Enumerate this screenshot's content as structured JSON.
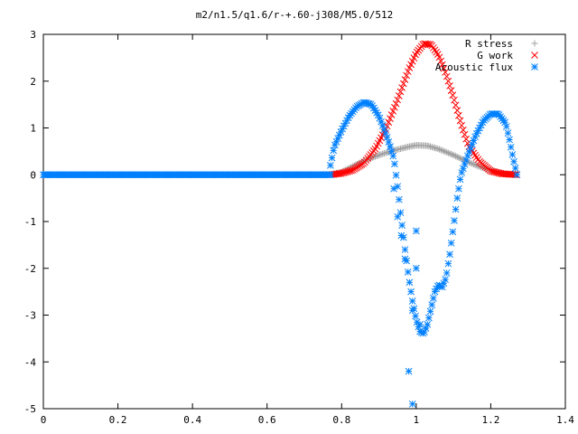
{
  "chart_data": {
    "type": "scatter",
    "title": "m2/n1.5/q1.6/r-+.60-j308/M5.0/512",
    "xlabel": "",
    "ylabel": "",
    "xlim": [
      0,
      1.4
    ],
    "ylim": [
      -5,
      3
    ],
    "xticks": [
      "0",
      "0.2",
      "0.4",
      "0.6",
      "0.8",
      "1",
      "1.2",
      "1.4"
    ],
    "yticks": [
      "3",
      "2",
      "1",
      "0",
      "-1",
      "-2",
      "-3",
      "-4",
      "-5"
    ],
    "grid": false,
    "legend": "top-right",
    "series": [
      {
        "name": "R stress",
        "marker": "plus",
        "color": "#a0a0a0",
        "x": [
          0.77,
          0.8,
          0.83,
          0.86,
          0.9,
          0.94,
          0.98,
          1.0,
          1.03,
          1.06,
          1.1,
          1.14,
          1.18,
          1.22,
          1.25,
          1.27
        ],
        "y": [
          0.0,
          0.06,
          0.18,
          0.3,
          0.42,
          0.52,
          0.6,
          0.63,
          0.62,
          0.55,
          0.42,
          0.27,
          0.14,
          0.05,
          0.01,
          0.0
        ]
      },
      {
        "name": "G work",
        "marker": "cross",
        "color": "#ff0000",
        "x": [
          0.77,
          0.8,
          0.83,
          0.86,
          0.89,
          0.92,
          0.95,
          0.98,
          1.0,
          1.02,
          1.04,
          1.06,
          1.08,
          1.1,
          1.12,
          1.14,
          1.17,
          1.2,
          1.23,
          1.27
        ],
        "y": [
          0.0,
          0.03,
          0.1,
          0.25,
          0.55,
          1.0,
          1.6,
          2.25,
          2.6,
          2.8,
          2.78,
          2.55,
          2.15,
          1.65,
          1.1,
          0.62,
          0.28,
          0.08,
          0.02,
          0.0
        ]
      },
      {
        "name": "Acoustic flux",
        "marker": "star",
        "color": "#0080ff",
        "x": [
          0.77,
          0.78,
          0.8,
          0.82,
          0.84,
          0.86,
          0.88,
          0.9,
          0.92,
          0.94,
          0.95,
          0.96,
          0.97,
          0.98,
          0.99,
          1.0,
          1.01,
          1.02,
          1.03,
          1.04,
          1.05,
          1.06,
          1.07,
          1.08,
          1.09,
          1.1,
          1.11,
          1.12,
          1.14,
          1.16,
          1.18,
          1.2,
          1.22,
          1.24,
          1.25,
          1.26,
          1.27,
          0.93,
          0.94,
          0.95,
          0.96,
          0.97,
          0.98,
          0.99,
          0.99,
          1.0,
          1.0,
          1.01
        ],
        "y": [
          0.2,
          0.6,
          0.95,
          1.25,
          1.45,
          1.55,
          1.5,
          1.25,
          0.85,
          0.35,
          -0.25,
          -0.95,
          -1.6,
          -2.2,
          -2.7,
          -3.1,
          -3.35,
          -3.4,
          -3.2,
          -2.85,
          -2.5,
          -2.35,
          -2.4,
          -2.2,
          -1.7,
          -1.1,
          -0.5,
          0.0,
          0.45,
          0.85,
          1.15,
          1.3,
          1.3,
          1.1,
          0.75,
          0.35,
          0.0,
          0.6,
          -0.3,
          -0.9,
          -1.3,
          -1.8,
          -4.2,
          -4.9,
          -2.9,
          -1.2,
          -2.0,
          -3.2
        ]
      }
    ]
  }
}
